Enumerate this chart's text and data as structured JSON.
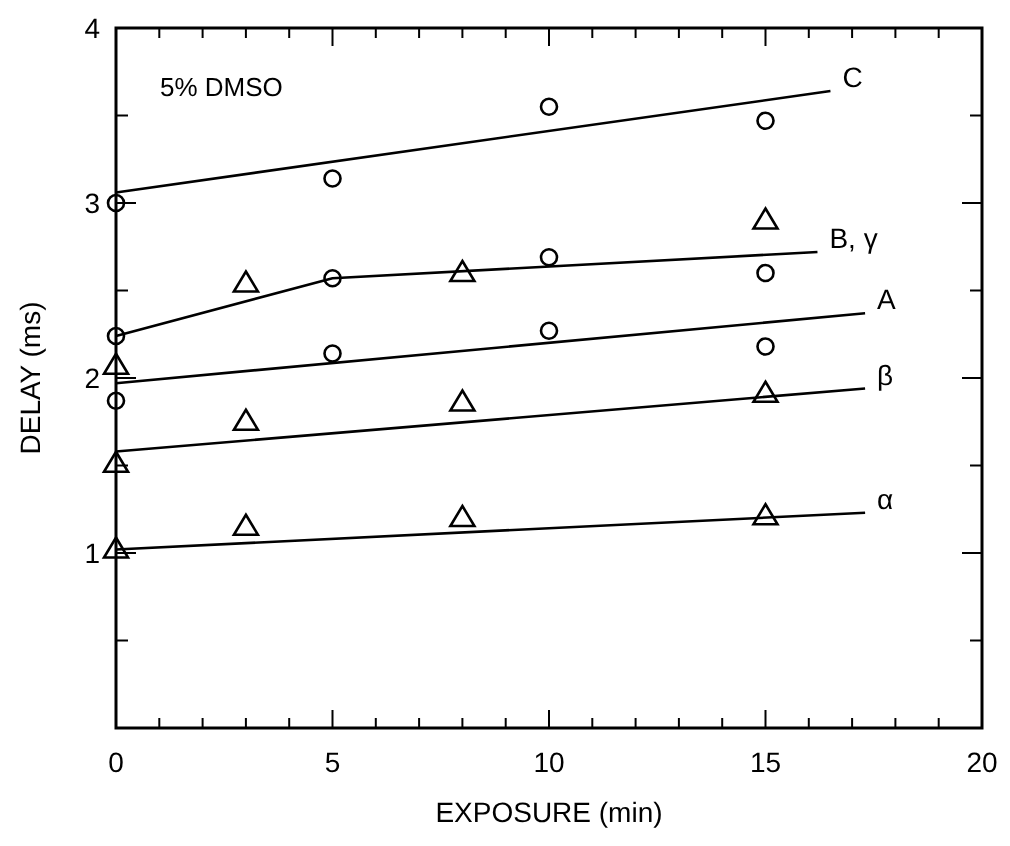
{
  "chart_data": {
    "type": "scatter",
    "xlabel": "EXPOSURE (min)",
    "ylabel": "DELAY (ms)",
    "annotations": [
      "5% DMSO"
    ],
    "xlim": [
      0,
      20
    ],
    "ylim": [
      0,
      4
    ],
    "xticks": [
      0,
      {
        "value": 1,
        "label": null
      },
      {
        "value": 2,
        "label": null
      },
      {
        "value": 3,
        "label": null
      },
      {
        "value": 4,
        "label": null
      },
      5,
      {
        "value": 6,
        "label": null
      },
      {
        "value": 7,
        "label": null
      },
      {
        "value": 8,
        "label": null
      },
      {
        "value": 9,
        "label": null
      },
      10,
      {
        "value": 11,
        "label": null
      },
      {
        "value": 12,
        "label": null
      },
      {
        "value": 13,
        "label": null
      },
      {
        "value": 14,
        "label": null
      },
      15,
      {
        "value": 16,
        "label": null
      },
      {
        "value": 17,
        "label": null
      },
      {
        "value": 18,
        "label": null
      },
      {
        "value": 19,
        "label": null
      },
      20
    ],
    "yticks": [
      {
        "value": 0,
        "label": null
      },
      {
        "value": 0.5,
        "label": null
      },
      1,
      {
        "value": 1.5,
        "label": null
      },
      2,
      {
        "value": 2.5,
        "label": null
      },
      3,
      {
        "value": 3.5,
        "label": null
      },
      4
    ],
    "grid": false,
    "series": [
      {
        "marker": "circle",
        "color": "#000000",
        "x": [
          0,
          5,
          10,
          15
        ],
        "values": [
          3.0,
          3.14,
          3.55,
          3.47
        ]
      },
      {
        "marker": "circle",
        "color": "#000000",
        "x": [
          0,
          5,
          10,
          15
        ],
        "values": [
          2.24,
          2.57,
          2.69,
          2.6
        ]
      },
      {
        "marker": "circle",
        "color": "#000000",
        "x": [
          0,
          5,
          10,
          15
        ],
        "values": [
          1.87,
          2.14,
          2.27,
          2.18
        ]
      },
      {
        "marker": "triangle",
        "color": "#000000",
        "x": [
          0,
          3,
          8,
          15
        ],
        "values": [
          2.07,
          2.54,
          2.6,
          2.9
        ]
      },
      {
        "marker": "triangle",
        "color": "#000000",
        "x": [
          0,
          3,
          8,
          15
        ],
        "values": [
          1.51,
          1.75,
          1.86,
          1.91
        ]
      },
      {
        "marker": "triangle",
        "color": "#000000",
        "x": [
          0,
          3,
          8,
          15
        ],
        "values": [
          1.02,
          1.15,
          1.2,
          1.21
        ]
      },
      {
        "type": "line",
        "name": "C",
        "marker": "none",
        "line_style": "solid",
        "color": "#000000",
        "x": [
          0,
          16.5
        ],
        "values": [
          3.06,
          3.64
        ]
      },
      {
        "type": "line",
        "name": "B, γ",
        "marker": "none",
        "line_style": "solid",
        "color": "#000000",
        "x": [
          0,
          5,
          16.2
        ],
        "values": [
          2.24,
          2.57,
          2.72
        ]
      },
      {
        "type": "line",
        "name": "A",
        "marker": "none",
        "line_style": "solid",
        "color": "#000000",
        "x": [
          0,
          17.3
        ],
        "values": [
          1.97,
          2.37
        ]
      },
      {
        "type": "line",
        "name": "β",
        "marker": "none",
        "line_style": "solid",
        "color": "#000000",
        "x": [
          0,
          17.3
        ],
        "values": [
          1.58,
          1.94
        ]
      },
      {
        "type": "line",
        "name": "α",
        "marker": "none",
        "line_style": "solid",
        "color": "#000000",
        "x": [
          0,
          17.3
        ],
        "values": [
          1.02,
          1.23
        ]
      }
    ]
  }
}
